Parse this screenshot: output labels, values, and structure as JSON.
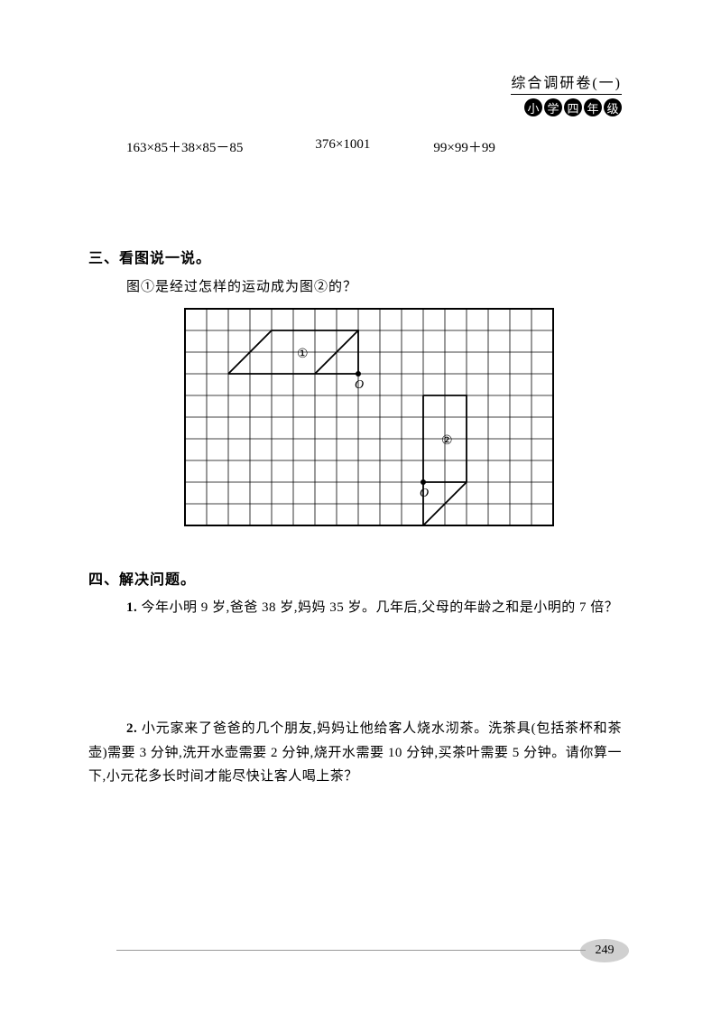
{
  "header": {
    "title": "综合调研卷(一)",
    "grade_chars": [
      "小",
      "学",
      "四",
      "年",
      "级"
    ]
  },
  "expressions": {
    "e1": "163×85＋38×85－85",
    "e2": "376×1001",
    "e3": "99×99＋99"
  },
  "section3": {
    "heading": "三、看图说一说。",
    "question": "图①是经过怎样的运动成为图②的？",
    "diagram": {
      "cols": 17,
      "rows": 10,
      "cell_size": 24,
      "border_color": "#000000",
      "grid_color": "#000000",
      "background": "#ffffff",
      "label1": "①",
      "label2": "②",
      "label_O": "O",
      "shapes": {
        "shape1_points": [
          [
            2,
            3
          ],
          [
            4,
            1
          ],
          [
            8,
            1
          ],
          [
            8,
            3
          ],
          [
            6,
            3
          ],
          [
            2,
            3
          ]
        ],
        "shape1_inner_line": [
          [
            6,
            3
          ],
          [
            8,
            1
          ]
        ],
        "point1": [
          8,
          3
        ],
        "shape2_points": [
          [
            11,
            4
          ],
          [
            13,
            4
          ],
          [
            13,
            8
          ],
          [
            11,
            10
          ],
          [
            11,
            8
          ],
          [
            11,
            4
          ]
        ],
        "shape2_inner_line": [
          [
            11,
            8
          ],
          [
            13,
            8
          ]
        ],
        "point2": [
          11,
          8
        ]
      }
    }
  },
  "section4": {
    "heading": "四、解决问题。",
    "p1_num": "1.",
    "p1_text": " 今年小明 9 岁,爸爸 38 岁,妈妈 35 岁。几年后,父母的年龄之和是小明的 7 倍？",
    "p2_num": "2.",
    "p2_text": " 小元家来了爸爸的几个朋友,妈妈让他给客人烧水沏茶。洗茶具(包括茶杯和茶壶)需要 3 分钟,洗开水壶需要 2 分钟,烧开水需要 10 分钟,买茶叶需要 5 分钟。请你算一下,小元花多长时间才能尽快让客人喝上茶？"
  },
  "page_number": "249",
  "colors": {
    "text": "#000000",
    "background": "#ffffff",
    "badge_bg": "#000000",
    "badge_fg": "#ffffff",
    "page_oval": "#d0d0d0"
  }
}
